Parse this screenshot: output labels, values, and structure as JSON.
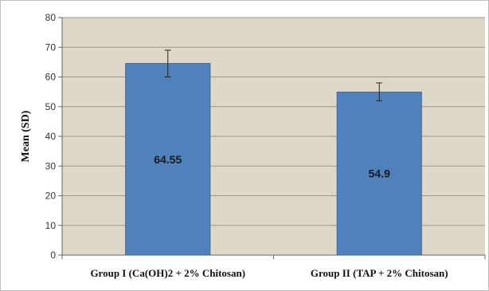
{
  "chart_data": {
    "type": "bar",
    "categories": [
      "Group I (Ca(OH)2 + 2% Chitosan)",
      "Group II (TAP + 2% Chitosan)"
    ],
    "values": [
      64.55,
      54.9
    ],
    "error_low": [
      60.0,
      52.0
    ],
    "error_high": [
      69.0,
      58.0
    ],
    "data_labels": [
      "64.55",
      "54.9"
    ],
    "title": "",
    "xlabel": "",
    "ylabel": "Mean (SD)",
    "ylim": [
      0,
      80
    ],
    "yticks": [
      0,
      10,
      20,
      30,
      40,
      50,
      60,
      70,
      80
    ],
    "grid": true,
    "legend": "none",
    "colors": {
      "bar_fill": "#4f81bd",
      "bar_edge": "#3d6da8",
      "plot_background": "#ddd8c8",
      "gridline": "#9c9888",
      "error_bar": "#222222"
    }
  }
}
